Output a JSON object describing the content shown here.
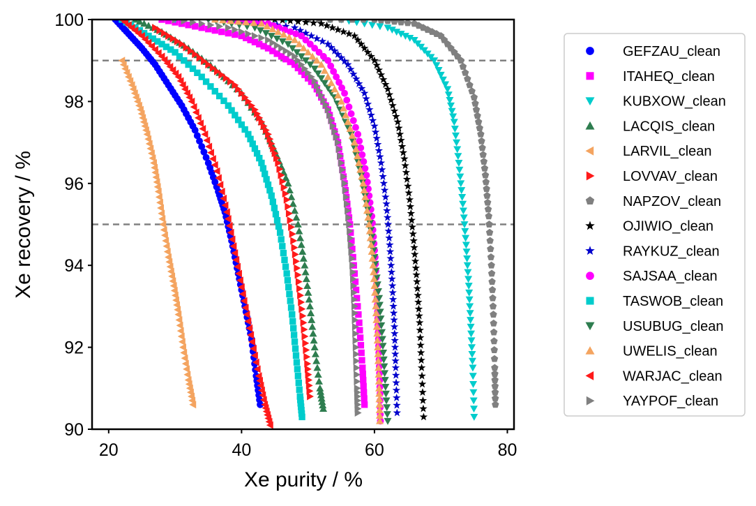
{
  "chart_data": {
    "type": "scatter",
    "title": "",
    "xlabel": "Xe purity / %",
    "ylabel": "Xe recovery / %",
    "xlim": [
      17.5,
      81
    ],
    "ylim": [
      90,
      100
    ],
    "xticks": [
      20,
      40,
      60,
      80
    ],
    "yticks": [
      90,
      92,
      94,
      96,
      98,
      100
    ],
    "grid": false,
    "legend_position": "right-outside",
    "reference_lines": [
      {
        "axis": "y",
        "value": 99,
        "style": "dashed",
        "color": "#808080"
      },
      {
        "axis": "y",
        "value": 95,
        "style": "dashed",
        "color": "#808080"
      }
    ],
    "series": [
      {
        "name": "GEFZAU_clean",
        "marker": "circle",
        "color": "#0000ff",
        "points": [
          [
            21.0,
            100
          ],
          [
            23.0,
            99.65
          ],
          [
            25.0,
            99.3
          ],
          [
            27.0,
            98.9
          ],
          [
            29.0,
            98.4
          ],
          [
            31.0,
            97.9
          ],
          [
            33.0,
            97.3
          ],
          [
            35.0,
            96.5
          ],
          [
            36.5,
            95.8
          ],
          [
            37.5,
            95.3
          ],
          [
            38.5,
            94.6
          ],
          [
            39.5,
            93.8
          ],
          [
            40.5,
            93.0
          ],
          [
            41.5,
            92.2
          ],
          [
            42.2,
            91.3
          ],
          [
            42.8,
            90.6
          ]
        ]
      },
      {
        "name": "ITAHEQ_clean",
        "marker": "square",
        "color": "#ff00ff",
        "points": [
          [
            28.0,
            100
          ],
          [
            34.0,
            99.8
          ],
          [
            40.0,
            99.6
          ],
          [
            44.0,
            99.3
          ],
          [
            48.0,
            98.9
          ],
          [
            51.0,
            98.4
          ],
          [
            53.0,
            97.8
          ],
          [
            54.5,
            97.0
          ],
          [
            55.5,
            96.0
          ],
          [
            56.3,
            95.0
          ],
          [
            57.0,
            93.8
          ],
          [
            57.7,
            92.6
          ],
          [
            58.2,
            91.5
          ],
          [
            58.5,
            90.6
          ]
        ]
      },
      {
        "name": "KUBXOW_clean",
        "marker": "triangle-down",
        "color": "#00cccc",
        "points": [
          [
            30.0,
            100
          ],
          [
            45.0,
            100
          ],
          [
            55.0,
            100
          ],
          [
            62.0,
            99.8
          ],
          [
            66.0,
            99.5
          ],
          [
            69.0,
            99.0
          ],
          [
            71.0,
            98.3
          ],
          [
            72.0,
            97.5
          ],
          [
            72.7,
            96.5
          ],
          [
            73.3,
            95.5
          ],
          [
            73.8,
            94.5
          ],
          [
            74.2,
            93.5
          ],
          [
            74.5,
            92.5
          ],
          [
            74.8,
            91.5
          ],
          [
            75.0,
            90.3
          ]
        ]
      },
      {
        "name": "LACQIS_clean",
        "marker": "triangle-up",
        "color": "#2e7d4f",
        "points": [
          [
            24.0,
            100
          ],
          [
            28.0,
            99.7
          ],
          [
            32.0,
            99.3
          ],
          [
            36.0,
            98.8
          ],
          [
            40.0,
            98.2
          ],
          [
            43.0,
            97.5
          ],
          [
            45.0,
            96.8
          ],
          [
            47.0,
            96.0
          ],
          [
            48.5,
            95.0
          ],
          [
            49.5,
            94.0
          ],
          [
            50.3,
            93.0
          ],
          [
            51.0,
            92.0
          ],
          [
            51.8,
            91.0
          ],
          [
            52.3,
            90.5
          ]
        ]
      },
      {
        "name": "LARVIL_clean",
        "marker": "triangle-left",
        "color": "#f4a460",
        "points": [
          [
            22.0,
            99.0
          ],
          [
            23.5,
            98.4
          ],
          [
            24.8,
            97.8
          ],
          [
            25.8,
            97.2
          ],
          [
            26.8,
            96.5
          ],
          [
            27.5,
            95.8
          ],
          [
            28.2,
            95.0
          ],
          [
            29.0,
            94.2
          ],
          [
            29.8,
            93.5
          ],
          [
            30.5,
            92.8
          ],
          [
            31.2,
            92.0
          ],
          [
            32.0,
            91.2
          ],
          [
            32.7,
            90.6
          ]
        ]
      },
      {
        "name": "LOVVAV_clean",
        "marker": "triangle-right",
        "color": "#ff1a1a",
        "points": [
          [
            27.0,
            99.8
          ],
          [
            31.0,
            99.4
          ],
          [
            35.0,
            98.9
          ],
          [
            39.0,
            98.4
          ],
          [
            42.0,
            97.8
          ],
          [
            44.0,
            97.2
          ],
          [
            45.5,
            96.5
          ],
          [
            46.8,
            95.6
          ],
          [
            47.8,
            94.6
          ],
          [
            48.6,
            93.6
          ],
          [
            49.3,
            92.6
          ],
          [
            49.9,
            91.6
          ],
          [
            50.3,
            90.8
          ]
        ]
      },
      {
        "name": "NAPZOV_clean",
        "marker": "pentagon",
        "color": "#808080",
        "points": [
          [
            50.0,
            100
          ],
          [
            60.0,
            100
          ],
          [
            66.0,
            99.9
          ],
          [
            70.0,
            99.6
          ],
          [
            73.0,
            99.0
          ],
          [
            75.0,
            98.1
          ],
          [
            76.0,
            97.2
          ],
          [
            76.7,
            96.2
          ],
          [
            77.2,
            95.2
          ],
          [
            77.6,
            94.0
          ],
          [
            77.9,
            92.8
          ],
          [
            78.1,
            91.5
          ],
          [
            78.2,
            90.6
          ]
        ]
      },
      {
        "name": "OJIWIO_clean",
        "marker": "star",
        "color": "#000000",
        "points": [
          [
            45.0,
            100
          ],
          [
            52.0,
            99.9
          ],
          [
            57.0,
            99.6
          ],
          [
            60.0,
            99.0
          ],
          [
            62.0,
            98.3
          ],
          [
            63.5,
            97.5
          ],
          [
            64.5,
            96.6
          ],
          [
            65.3,
            95.6
          ],
          [
            65.9,
            94.6
          ],
          [
            66.4,
            93.6
          ],
          [
            66.8,
            92.6
          ],
          [
            67.1,
            91.5
          ],
          [
            67.4,
            90.3
          ]
        ]
      },
      {
        "name": "RAYKUZ_clean",
        "marker": "star",
        "color": "#0000cc",
        "points": [
          [
            40.0,
            100
          ],
          [
            48.0,
            99.8
          ],
          [
            53.0,
            99.4
          ],
          [
            56.0,
            98.9
          ],
          [
            58.5,
            98.2
          ],
          [
            60.0,
            97.4
          ],
          [
            61.0,
            96.5
          ],
          [
            61.8,
            95.5
          ],
          [
            62.3,
            94.5
          ],
          [
            62.7,
            93.5
          ],
          [
            63.0,
            92.5
          ],
          [
            63.2,
            91.5
          ],
          [
            63.4,
            90.4
          ]
        ]
      },
      {
        "name": "SAJSAA_clean",
        "marker": "circle",
        "color": "#ff00ff",
        "points": [
          [
            38.0,
            100
          ],
          [
            44.0,
            99.9
          ],
          [
            49.0,
            99.6
          ],
          [
            53.0,
            99.0
          ],
          [
            55.5,
            98.2
          ],
          [
            57.5,
            97.2
          ],
          [
            58.8,
            96.2
          ],
          [
            59.6,
            95.2
          ],
          [
            60.1,
            94.2
          ],
          [
            60.4,
            93.2
          ],
          [
            60.6,
            92.2
          ],
          [
            60.8,
            91.2
          ],
          [
            60.9,
            90.2
          ]
        ]
      },
      {
        "name": "TASWOB_clean",
        "marker": "square",
        "color": "#00cccc",
        "points": [
          [
            22.0,
            100
          ],
          [
            26.0,
            99.6
          ],
          [
            30.0,
            99.2
          ],
          [
            34.0,
            98.6
          ],
          [
            38.0,
            97.9
          ],
          [
            41.0,
            97.2
          ],
          [
            43.0,
            96.5
          ],
          [
            44.5,
            95.7
          ],
          [
            45.8,
            94.8
          ],
          [
            46.8,
            93.8
          ],
          [
            47.6,
            92.8
          ],
          [
            48.2,
            91.8
          ],
          [
            48.8,
            90.8
          ],
          [
            49.1,
            90.3
          ]
        ]
      },
      {
        "name": "USUBUG_clean",
        "marker": "triangle-down",
        "color": "#2e7d4f",
        "points": [
          [
            35.0,
            100
          ],
          [
            42.0,
            99.8
          ],
          [
            47.0,
            99.4
          ],
          [
            51.0,
            98.8
          ],
          [
            54.0,
            98.1
          ],
          [
            56.5,
            97.2
          ],
          [
            58.0,
            96.2
          ],
          [
            59.2,
            95.2
          ],
          [
            60.0,
            94.2
          ],
          [
            60.7,
            93.2
          ],
          [
            61.2,
            92.2
          ],
          [
            61.6,
            91.2
          ],
          [
            62.0,
            90.2
          ]
        ]
      },
      {
        "name": "UWELIS_clean",
        "marker": "triangle-up",
        "color": "#f4a460",
        "points": [
          [
            36.0,
            100
          ],
          [
            43.0,
            99.9
          ],
          [
            48.0,
            99.5
          ],
          [
            52.0,
            98.9
          ],
          [
            55.0,
            98.0
          ],
          [
            57.0,
            97.0
          ],
          [
            58.3,
            96.0
          ],
          [
            59.2,
            95.0
          ],
          [
            59.8,
            94.0
          ],
          [
            60.2,
            93.0
          ],
          [
            60.5,
            92.0
          ],
          [
            60.7,
            91.0
          ],
          [
            60.8,
            90.2
          ]
        ]
      },
      {
        "name": "WARJAC_clean",
        "marker": "triangle-left",
        "color": "#ff1a1a",
        "points": [
          [
            22.0,
            100
          ],
          [
            25.0,
            99.6
          ],
          [
            28.0,
            99.1
          ],
          [
            30.5,
            98.6
          ],
          [
            32.5,
            98.0
          ],
          [
            34.5,
            97.2
          ],
          [
            36.3,
            96.3
          ],
          [
            37.8,
            95.3
          ],
          [
            39.0,
            94.3
          ],
          [
            40.2,
            93.3
          ],
          [
            41.4,
            92.3
          ],
          [
            42.6,
            91.3
          ],
          [
            43.5,
            90.6
          ],
          [
            44.3,
            90.1
          ]
        ]
      },
      {
        "name": "YAYPOF_clean",
        "marker": "triangle-right",
        "color": "#808080",
        "points": [
          [
            30.0,
            100
          ],
          [
            38.0,
            99.8
          ],
          [
            44.0,
            99.5
          ],
          [
            48.0,
            99.1
          ],
          [
            51.0,
            98.5
          ],
          [
            53.0,
            97.8
          ],
          [
            54.5,
            97.0
          ],
          [
            55.5,
            96.0
          ],
          [
            56.2,
            95.0
          ],
          [
            56.7,
            94.0
          ],
          [
            57.0,
            93.0
          ],
          [
            57.2,
            92.0
          ],
          [
            57.4,
            91.0
          ],
          [
            57.5,
            90.4
          ]
        ]
      }
    ]
  }
}
